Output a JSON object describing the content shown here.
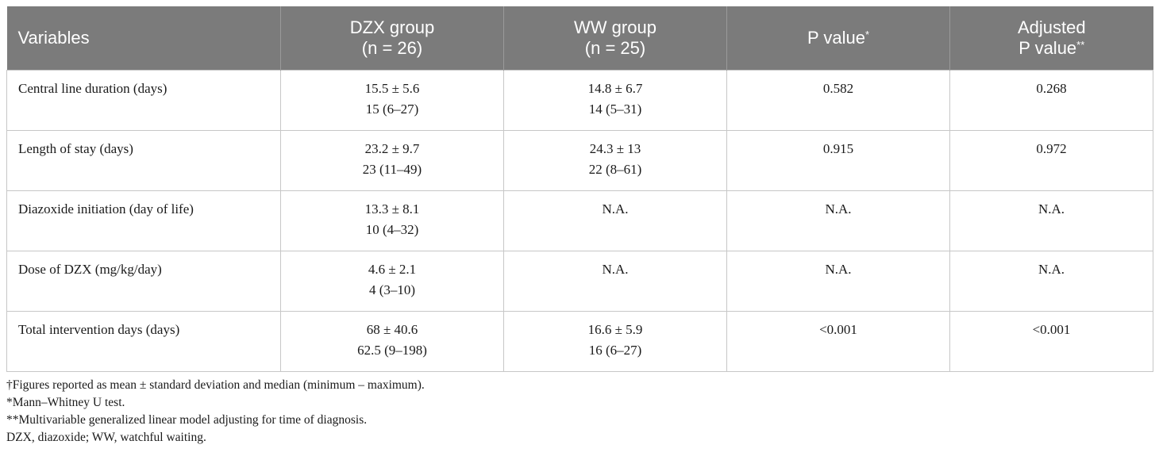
{
  "table": {
    "headers": [
      {
        "line1": "Variables",
        "line2": "",
        "sup": ""
      },
      {
        "line1": "DZX group",
        "line2": "(n = 26)",
        "sup": ""
      },
      {
        "line1": "WW group",
        "line2": "(n = 25)",
        "sup": ""
      },
      {
        "line1": "P value",
        "line2": "",
        "sup": "*"
      },
      {
        "line1": "Adjusted",
        "line2": "P value",
        "sup": "**"
      }
    ],
    "rows": [
      {
        "variable": "Central line duration (days)",
        "dzx": [
          "15.5 ± 5.6",
          "15 (6–27)"
        ],
        "ww": [
          "14.8 ± 6.7",
          "14 (5–31)"
        ],
        "p": "0.582",
        "adj_p": "0.268"
      },
      {
        "variable": "Length of stay (days)",
        "dzx": [
          "23.2 ± 9.7",
          "23 (11–49)"
        ],
        "ww": [
          "24.3 ± 13",
          "22 (8–61)"
        ],
        "p": "0.915",
        "adj_p": "0.972"
      },
      {
        "variable": "Diazoxide initiation (day of life)",
        "dzx": [
          "13.3 ± 8.1",
          "10 (4–32)"
        ],
        "ww": [
          "N.A.",
          ""
        ],
        "p": "N.A.",
        "adj_p": "N.A."
      },
      {
        "variable": "Dose of DZX (mg/kg/day)",
        "dzx": [
          "4.6 ± 2.1",
          "4 (3–10)"
        ],
        "ww": [
          "N.A.",
          ""
        ],
        "p": "N.A.",
        "adj_p": "N.A."
      },
      {
        "variable": "Total intervention days (days)",
        "dzx": [
          "68 ± 40.6",
          "62.5 (9–198)"
        ],
        "ww": [
          "16.6 ± 5.9",
          "16 (6–27)"
        ],
        "p": "<0.001",
        "adj_p": "<0.001"
      }
    ]
  },
  "footnotes": [
    "†Figures reported as mean ± standard deviation and median (minimum – maximum).",
    "*Mann–Whitney U test.",
    "**Multivariable generalized linear model adjusting for time of diagnosis.",
    "DZX, diazoxide; WW, watchful waiting."
  ]
}
